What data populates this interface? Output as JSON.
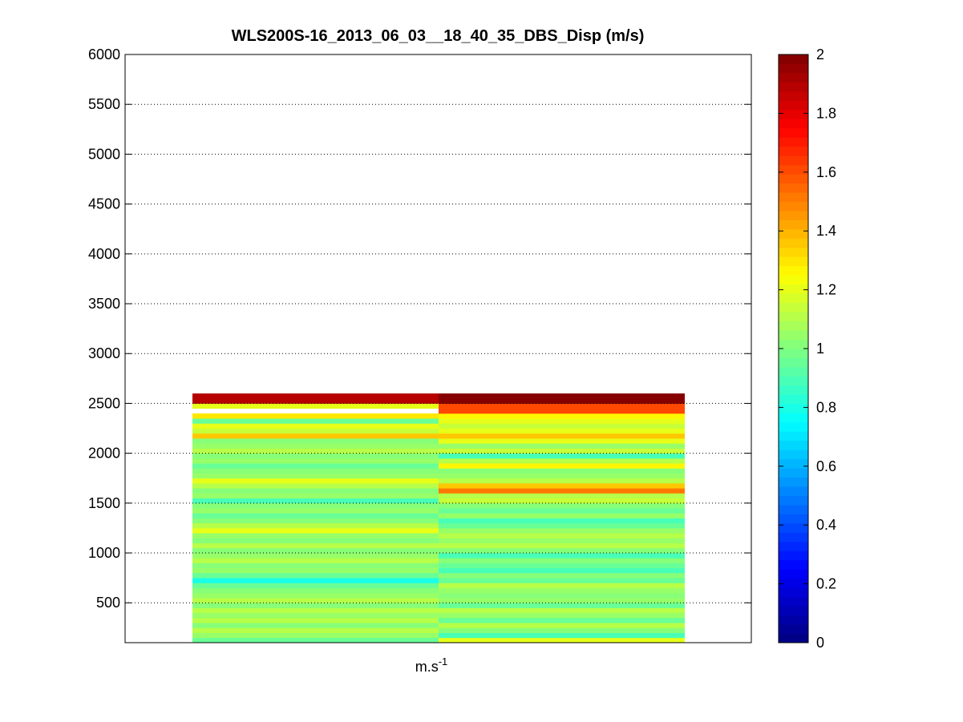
{
  "chart_data": {
    "type": "heatmap",
    "title": "WLS200S-16_2013_06_03__18_40_35_DBS_Disp (m/s)",
    "xlabel": "m.s",
    "xlabel_superscript": "-1",
    "ylabel": "",
    "ylim": [
      100,
      6000
    ],
    "y_ticks": [
      500,
      1000,
      1500,
      2000,
      2500,
      3000,
      3500,
      4000,
      4500,
      5000,
      5500,
      6000
    ],
    "grid": "horizontal dotted",
    "bin_height": 50,
    "columns": [
      {
        "bins_from": 100,
        "values": [
          0.95,
          1.05,
          1.1,
          1.0,
          1.1,
          1.05,
          1.1,
          1.0,
          1.1,
          1.05,
          1.0,
          0.95,
          0.8,
          0.95,
          1.05,
          1.0,
          1.1,
          1.05,
          1.0,
          1.1,
          1.0,
          1.05,
          1.2,
          1.1,
          1.0,
          0.95,
          1.05,
          1.0,
          0.9,
          1.05,
          1.0,
          1.1,
          1.2,
          1.05,
          1.0,
          0.95,
          1.05,
          1.0,
          1.1,
          1.05,
          1.0,
          1.35,
          1.15,
          1.2,
          0.95,
          1.3,
          null,
          1.2,
          1.9,
          1.9
        ]
      },
      {
        "bins_from": 100,
        "values": [
          1.2,
          0.9,
          1.0,
          1.1,
          0.95,
          1.05,
          1.1,
          0.95,
          1.05,
          1.0,
          1.05,
          1.1,
          0.95,
          1.0,
          0.9,
          0.95,
          1.0,
          0.9,
          1.0,
          1.1,
          1.05,
          1.1,
          1.05,
          0.95,
          0.9,
          1.05,
          0.95,
          1.0,
          1.15,
          1.1,
          1.5,
          1.35,
          1.1,
          1.05,
          1.0,
          1.25,
          1.1,
          0.9,
          1.15,
          1.05,
          1.2,
          1.35,
          1.2,
          1.15,
          1.2,
          1.25,
          1.6,
          1.6,
          2.0,
          2.0
        ]
      }
    ],
    "colorbar": {
      "range": [
        0,
        2
      ],
      "ticks": [
        "0",
        "0.2",
        "0.4",
        "0.6",
        "0.8",
        "1",
        "1.2",
        "1.4",
        "1.6",
        "1.8",
        "2"
      ],
      "colormap": "jet"
    }
  }
}
